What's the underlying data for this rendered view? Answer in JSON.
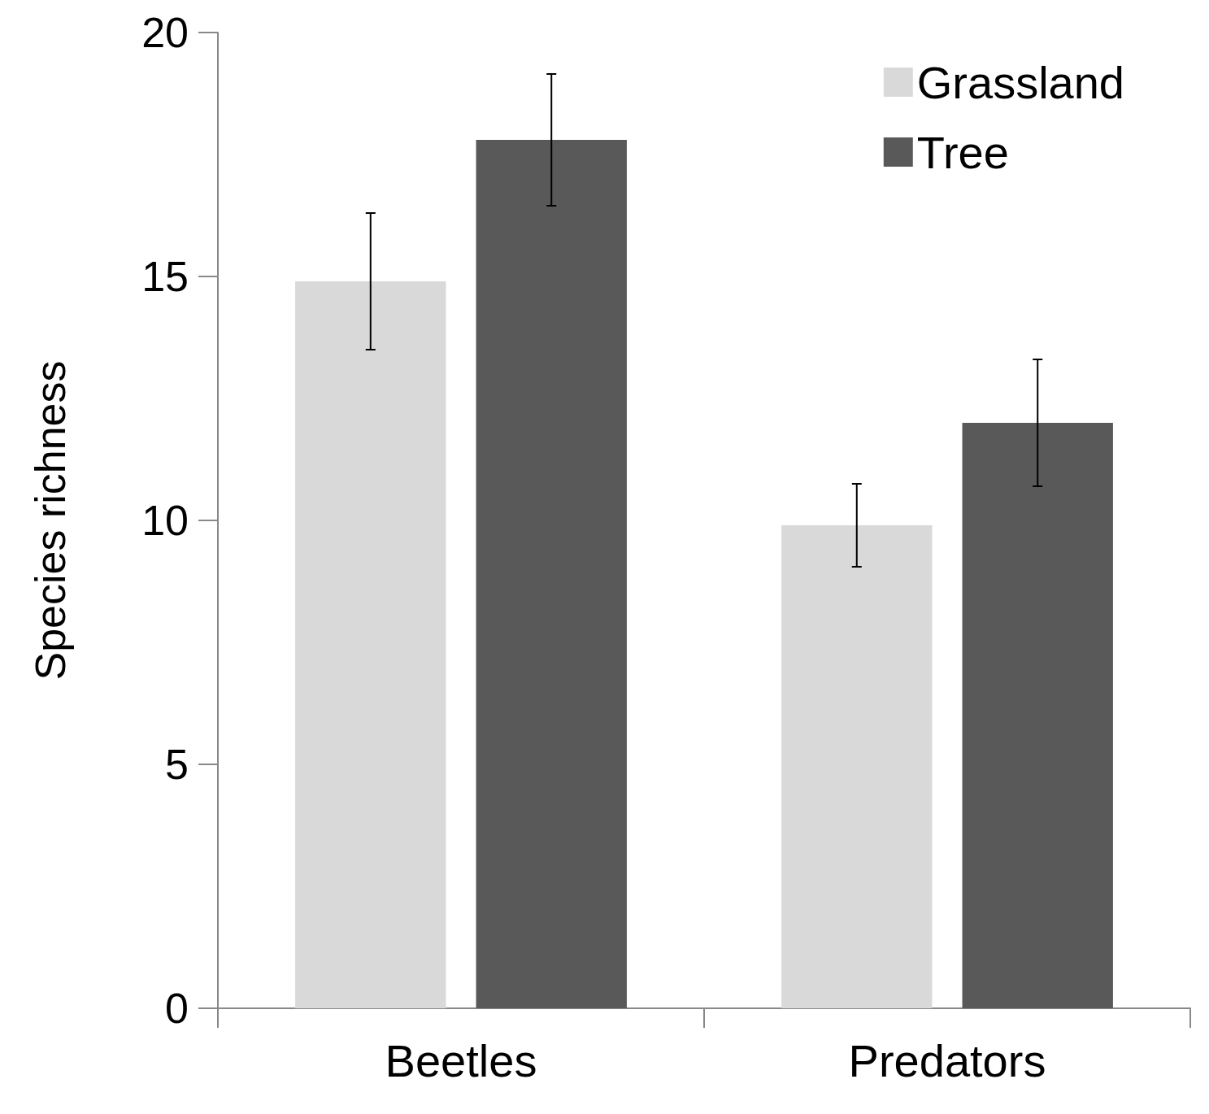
{
  "chart_data": {
    "type": "bar",
    "ylabel": "Species richness",
    "categories": [
      "Beetles",
      "Predators"
    ],
    "series": [
      {
        "name": "Grassland",
        "color": "#d9d9d9",
        "values": [
          14.9,
          9.9
        ],
        "errors": [
          1.4,
          0.85
        ]
      },
      {
        "name": "Tree",
        "color": "#595959",
        "values": [
          17.8,
          12.0
        ],
        "errors": [
          1.35,
          1.3
        ]
      }
    ],
    "ylim": [
      0,
      20
    ],
    "yticks": [
      0,
      5,
      10,
      15,
      20
    ],
    "grid": false,
    "legend": "top right"
  }
}
